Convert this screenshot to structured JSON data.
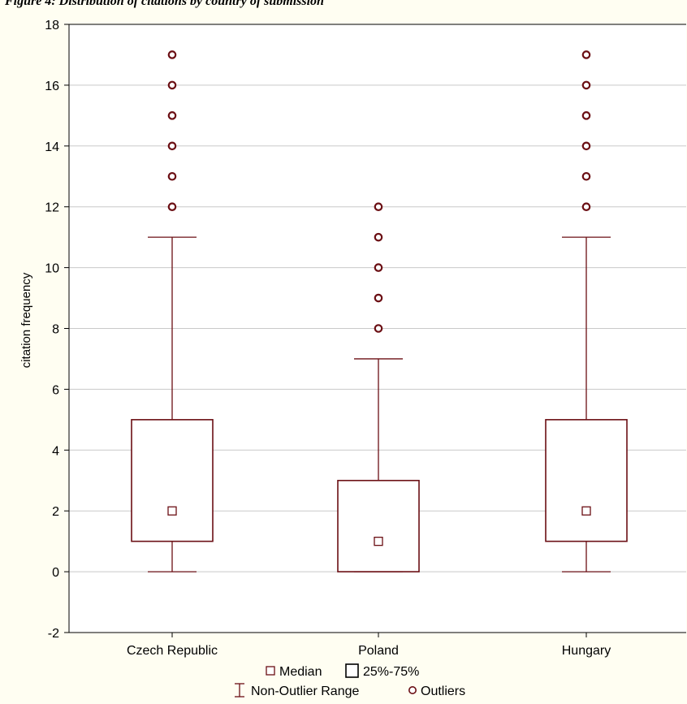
{
  "chart_data": {
    "type": "box",
    "title": "Figure 4: Distribution of citations by country of submission",
    "ylabel": "citation frequency",
    "xlabel": "",
    "ylim": [
      -2,
      18
    ],
    "yticks": [
      -2,
      0,
      2,
      4,
      6,
      8,
      10,
      12,
      14,
      16,
      18
    ],
    "grid": true,
    "categories": [
      "Czech Republic",
      "Poland",
      "Hungary"
    ],
    "boxes": [
      {
        "category": "Czech Republic",
        "median": 2,
        "q1": 1,
        "q3": 5,
        "whisker_low": 0,
        "whisker_high": 11,
        "outliers": [
          12,
          13,
          14,
          15,
          16,
          17
        ]
      },
      {
        "category": "Poland",
        "median": 1,
        "q1": 0,
        "q3": 3,
        "whisker_low": 0,
        "whisker_high": 7,
        "outliers": [
          8,
          9,
          10,
          11,
          12
        ]
      },
      {
        "category": "Hungary",
        "median": 2,
        "q1": 1,
        "q3": 5,
        "whisker_low": 0,
        "whisker_high": 11,
        "outliers": [
          12,
          13,
          14,
          15,
          16,
          17
        ]
      }
    ],
    "legend": {
      "position": "bottom",
      "entries": [
        "Median",
        "25%-75%",
        "Non-Outlier Range",
        "Outliers"
      ]
    },
    "colors": {
      "marks": "#6b0f14",
      "grid": "#c9c9c9",
      "plot_bg": "#ffffff",
      "page_bg": "#fffef2"
    }
  }
}
